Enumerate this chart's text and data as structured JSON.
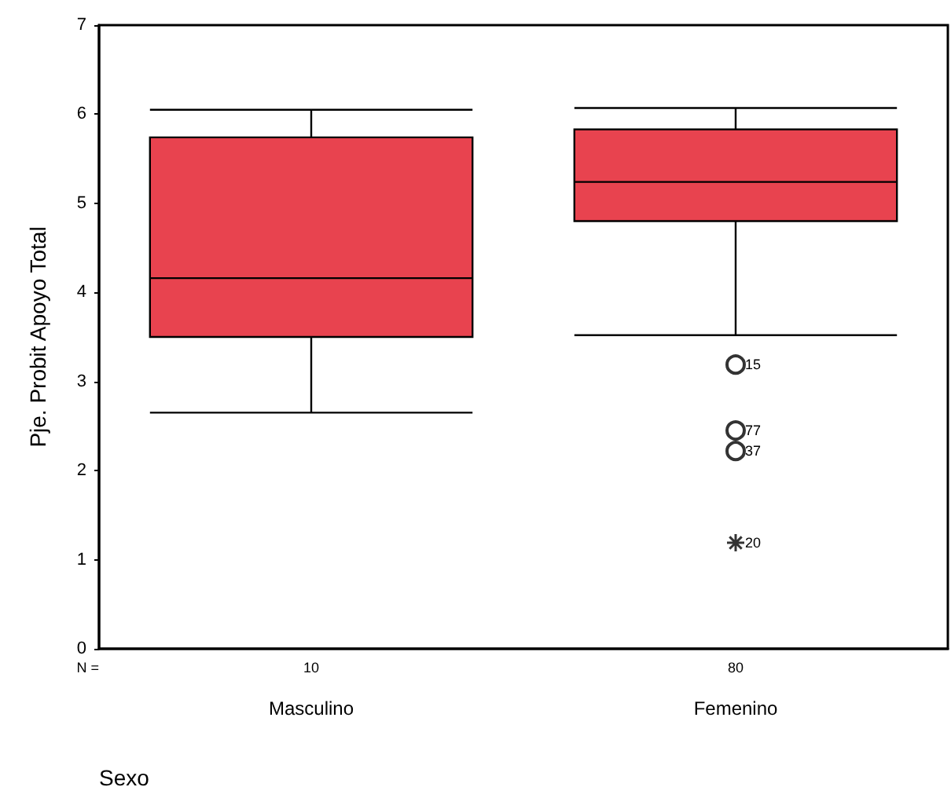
{
  "chart_data": {
    "type": "box",
    "xlabel": "Sexo",
    "ylabel": "Pje. Probit Apoyo Total",
    "categories": [
      "Masculino",
      "Femenino"
    ],
    "series": [
      {
        "type": "box",
        "color": "#e8434f",
        "boxes": [
          {
            "low": 2.65,
            "q1": 3.5,
            "median": 4.16,
            "q3": 5.74,
            "high": 6.05
          },
          {
            "low": 3.52,
            "q1": 4.8,
            "median": 5.24,
            "q3": 5.83,
            "high": 6.07
          }
        ]
      },
      {
        "type": "scatter",
        "marker": "circle",
        "color": "#000000",
        "x": [
          "Femenino",
          "Femenino",
          "Femenino"
        ],
        "values": [
          3.19,
          2.45,
          2.22
        ]
      },
      {
        "type": "scatter",
        "marker": "cross",
        "color": "#000000",
        "x": [
          "Femenino"
        ],
        "values": [
          1.19
        ]
      }
    ],
    "ylim": [
      0,
      7
    ],
    "yticks": [
      0,
      1,
      2,
      3,
      4,
      5,
      6,
      7
    ],
    "grid": false,
    "annotations": [
      "N =",
      "10",
      "80",
      {
        "text": "15",
        "x": "Femenino",
        "y": 3.19
      },
      {
        "text": "77",
        "x": "Femenino",
        "y": 2.45
      },
      {
        "text": "37",
        "x": "Femenino",
        "y": 2.22
      },
      {
        "text": "20",
        "x": "Femenino",
        "y": 1.19
      }
    ]
  }
}
